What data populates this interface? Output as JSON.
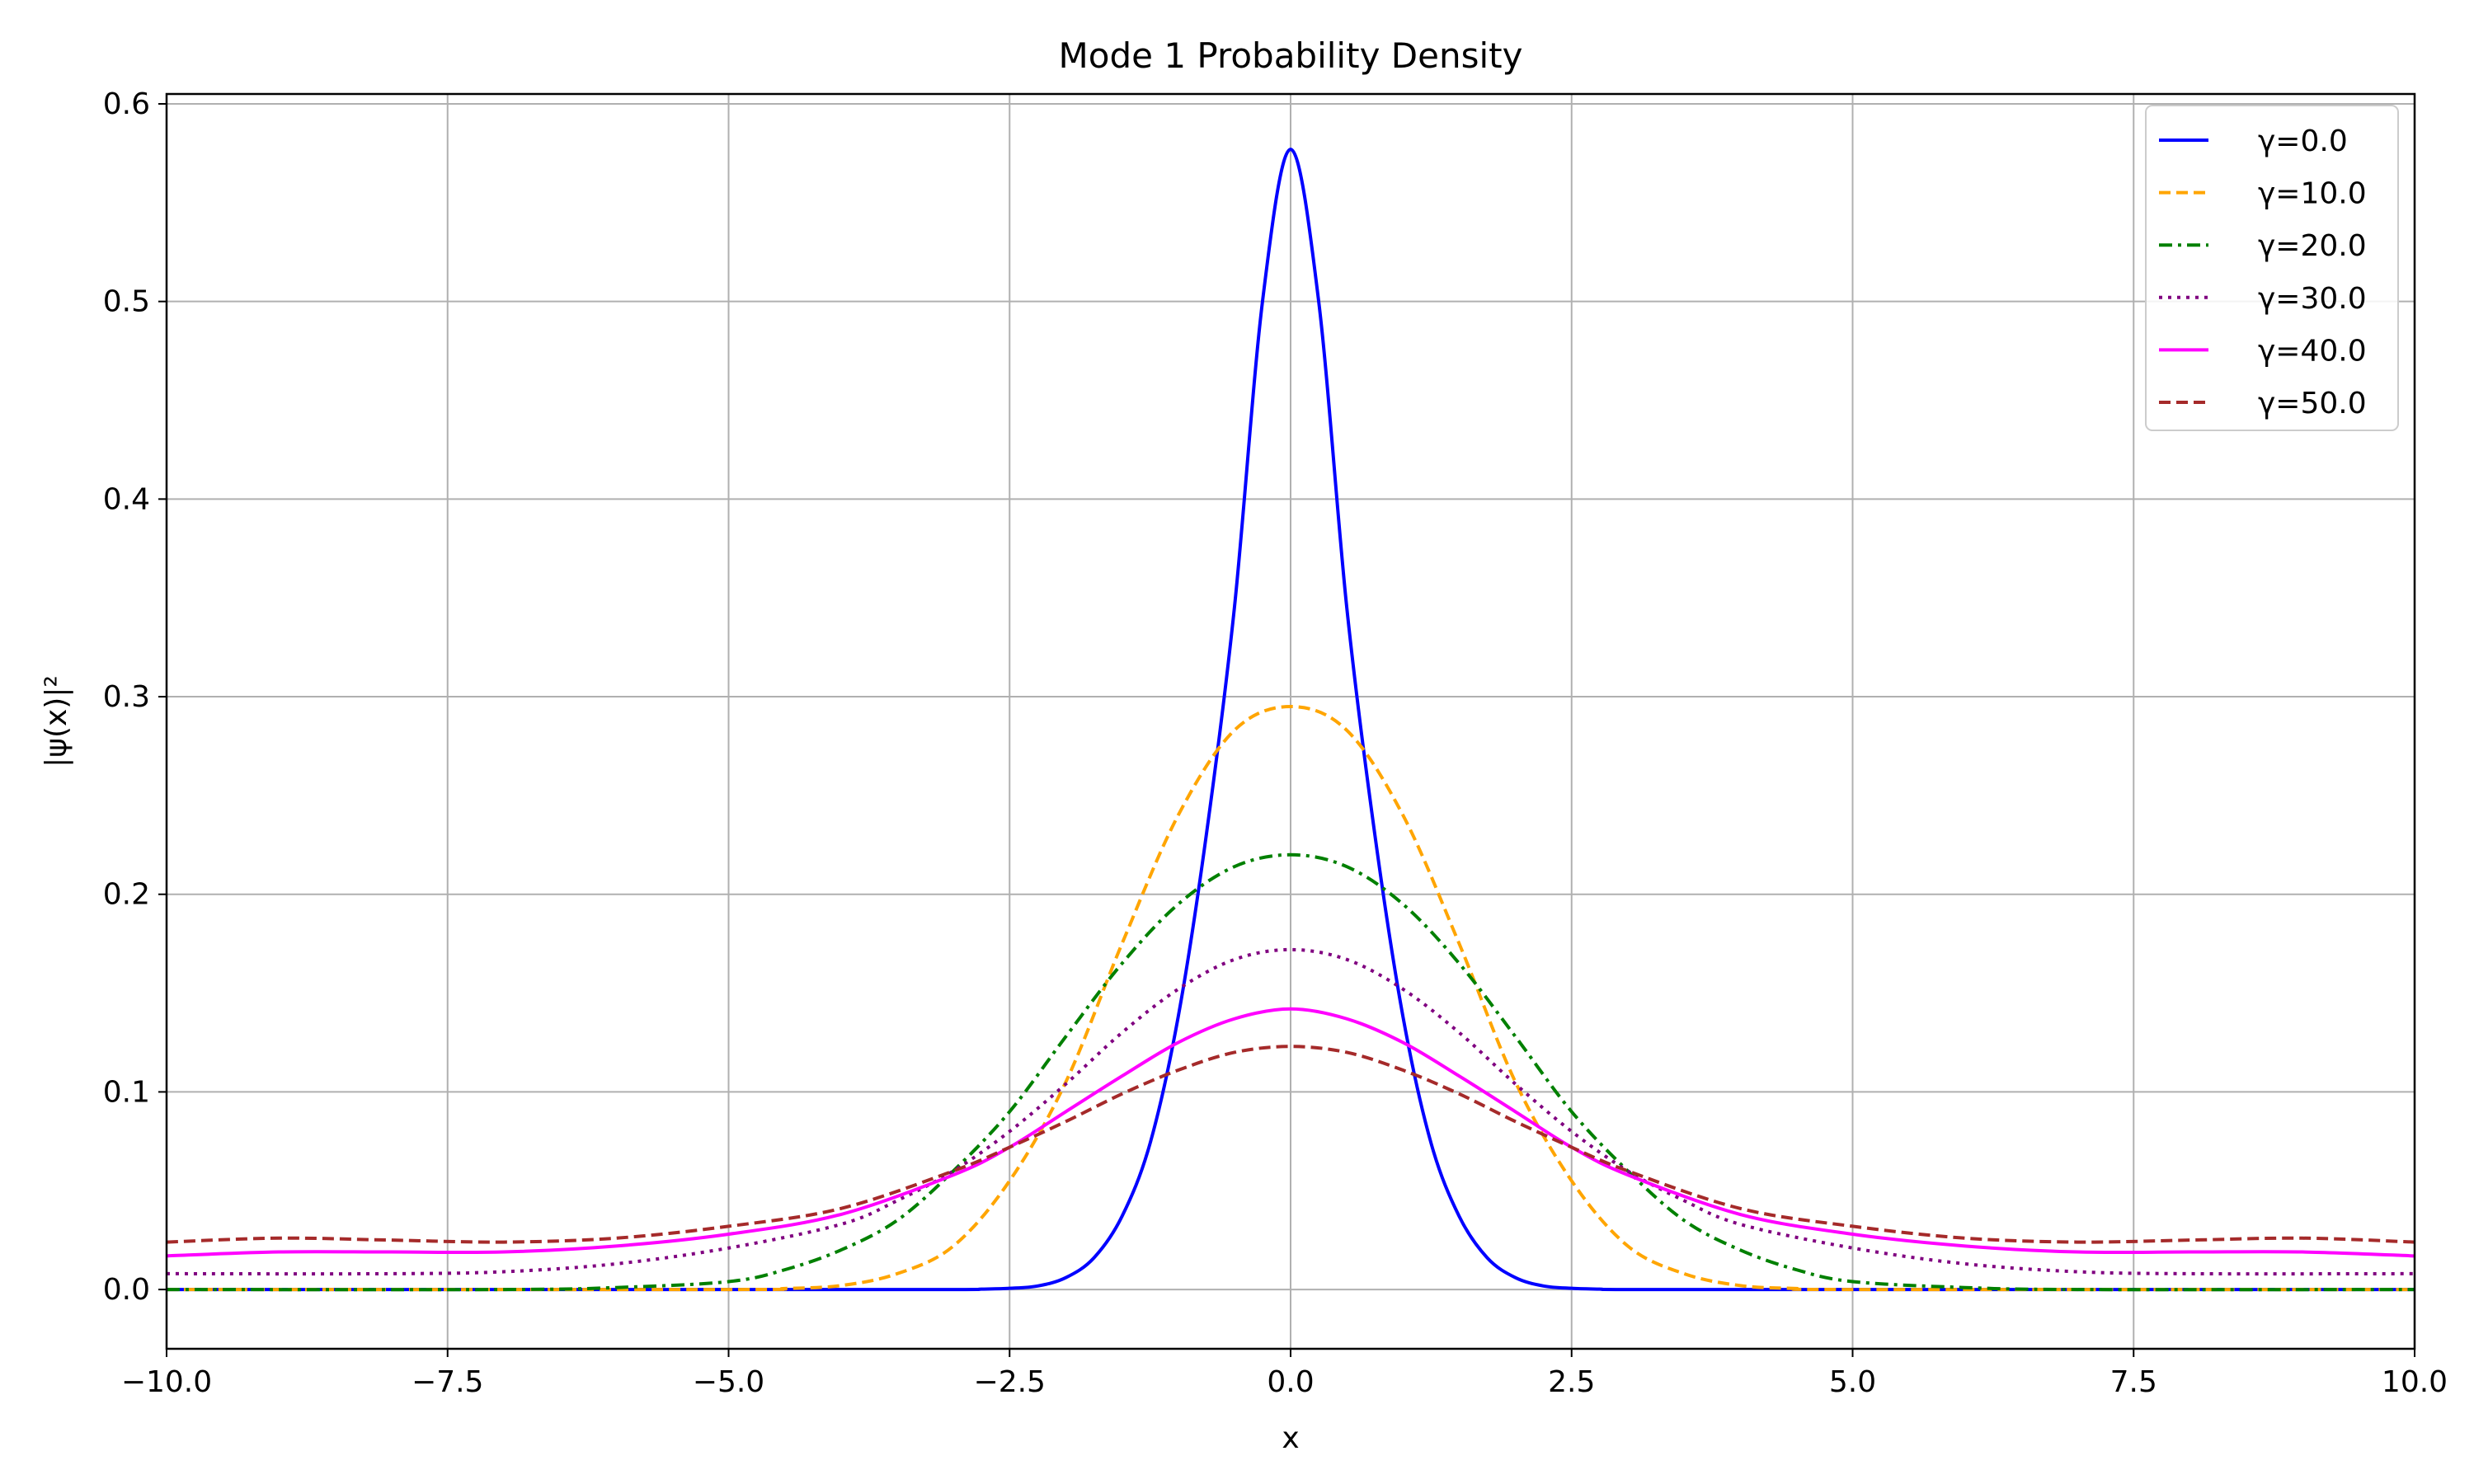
{
  "chart_data": {
    "type": "line",
    "title": "Mode 1 Probability Density",
    "xlabel": "x",
    "ylabel": "|ψ(x)|²",
    "xlim": [
      -10,
      10
    ],
    "ylim": [
      -0.03,
      0.605
    ],
    "grid": true,
    "legend_position": "top-right",
    "xticks": [
      -10,
      -7.5,
      -5,
      -2.5,
      0,
      2.5,
      5,
      7.5,
      10
    ],
    "xtick_labels": [
      "−10.0",
      "−7.5",
      "−5.0",
      "−2.5",
      "0.0",
      "2.5",
      "5.0",
      "7.5",
      "10.0"
    ],
    "yticks": [
      0,
      0.1,
      0.2,
      0.3,
      0.4,
      0.5,
      0.6
    ],
    "ytick_labels": [
      "0.0",
      "0.1",
      "0.2",
      "0.3",
      "0.4",
      "0.5",
      "0.6"
    ],
    "series": [
      {
        "name": "γ=0.0",
        "color": "#0000ff",
        "dash": "solid",
        "points": [
          [
            -10,
            0
          ],
          [
            -5,
            0
          ],
          [
            -3,
            0.0
          ],
          [
            -2.75,
            0.0002
          ],
          [
            -2.5,
            0.0006
          ],
          [
            -2.25,
            0.0018
          ],
          [
            -2,
            0.006
          ],
          [
            -1.75,
            0.016
          ],
          [
            -1.5,
            0.037
          ],
          [
            -1.25,
            0.074
          ],
          [
            -1,
            0.138
          ],
          [
            -0.75,
            0.23
          ],
          [
            -0.5,
            0.345
          ],
          [
            -0.25,
            0.5
          ],
          [
            0,
            0.577
          ],
          [
            0.25,
            0.5
          ],
          [
            0.5,
            0.345
          ],
          [
            0.75,
            0.23
          ],
          [
            1,
            0.138
          ],
          [
            1.25,
            0.074
          ],
          [
            1.5,
            0.037
          ],
          [
            1.75,
            0.016
          ],
          [
            2,
            0.006
          ],
          [
            2.25,
            0.0018
          ],
          [
            2.5,
            0.0006
          ],
          [
            2.75,
            0.0002
          ],
          [
            3,
            0.0
          ],
          [
            5,
            0
          ],
          [
            10,
            0
          ]
        ]
      },
      {
        "name": "γ=10.0",
        "color": "#ffa500",
        "dash": "dashed",
        "points": [
          [
            -10,
            0
          ],
          [
            -5,
            0.0
          ],
          [
            -4.5,
            0.0005
          ],
          [
            -4,
            0.002
          ],
          [
            -3.5,
            0.008
          ],
          [
            -3,
            0.022
          ],
          [
            -2.5,
            0.055
          ],
          [
            -2,
            0.105
          ],
          [
            -1.5,
            0.175
          ],
          [
            -1,
            0.24
          ],
          [
            -0.5,
            0.283
          ],
          [
            0,
            0.295
          ],
          [
            0.5,
            0.283
          ],
          [
            1,
            0.24
          ],
          [
            1.5,
            0.175
          ],
          [
            2,
            0.105
          ],
          [
            2.5,
            0.055
          ],
          [
            3,
            0.022
          ],
          [
            3.5,
            0.008
          ],
          [
            4,
            0.002
          ],
          [
            4.5,
            0.0005
          ],
          [
            5,
            0.0
          ],
          [
            10,
            0
          ]
        ]
      },
      {
        "name": "γ=20.0",
        "color": "#008000",
        "dash": "dashdot",
        "points": [
          [
            -10,
            0
          ],
          [
            -7,
            0.0
          ],
          [
            -6,
            0.001
          ],
          [
            -5,
            0.004
          ],
          [
            -4.5,
            0.01
          ],
          [
            -4,
            0.02
          ],
          [
            -3.5,
            0.035
          ],
          [
            -3,
            0.06
          ],
          [
            -2.5,
            0.09
          ],
          [
            -2,
            0.128
          ],
          [
            -1.5,
            0.165
          ],
          [
            -1,
            0.195
          ],
          [
            -0.5,
            0.214
          ],
          [
            0,
            0.22
          ],
          [
            0.5,
            0.214
          ],
          [
            1,
            0.195
          ],
          [
            1.5,
            0.165
          ],
          [
            2,
            0.128
          ],
          [
            2.5,
            0.09
          ],
          [
            3,
            0.06
          ],
          [
            3.5,
            0.035
          ],
          [
            4,
            0.02
          ],
          [
            4.5,
            0.01
          ],
          [
            5,
            0.004
          ],
          [
            6,
            0.001
          ],
          [
            7,
            0.0
          ],
          [
            10,
            0
          ]
        ]
      },
      {
        "name": "γ=30.0",
        "color": "#800080",
        "dash": "dotted",
        "points": [
          [
            -10,
            0.008
          ],
          [
            -8,
            0.008
          ],
          [
            -7,
            0.009
          ],
          [
            -6,
            0.013
          ],
          [
            -5,
            0.021
          ],
          [
            -4,
            0.033
          ],
          [
            -3.5,
            0.045
          ],
          [
            -3,
            0.06
          ],
          [
            -2.5,
            0.08
          ],
          [
            -2,
            0.104
          ],
          [
            -1.5,
            0.13
          ],
          [
            -1,
            0.152
          ],
          [
            -0.5,
            0.167
          ],
          [
            0,
            0.172
          ],
          [
            0.5,
            0.167
          ],
          [
            1,
            0.152
          ],
          [
            1.5,
            0.13
          ],
          [
            2,
            0.104
          ],
          [
            2.5,
            0.08
          ],
          [
            3,
            0.06
          ],
          [
            3.5,
            0.045
          ],
          [
            4,
            0.033
          ],
          [
            5,
            0.021
          ],
          [
            6,
            0.013
          ],
          [
            7,
            0.009
          ],
          [
            8,
            0.008
          ],
          [
            10,
            0.008
          ]
        ]
      },
      {
        "name": "γ=40.0",
        "color": "#ff00ff",
        "dash": "solid",
        "points": [
          [
            -10,
            0.017
          ],
          [
            -9,
            0.019
          ],
          [
            -8,
            0.019
          ],
          [
            -7,
            0.019
          ],
          [
            -6,
            0.022
          ],
          [
            -5,
            0.028
          ],
          [
            -4,
            0.038
          ],
          [
            -3,
            0.058
          ],
          [
            -2.5,
            0.072
          ],
          [
            -2,
            0.09
          ],
          [
            -1.5,
            0.108
          ],
          [
            -1,
            0.125
          ],
          [
            -0.5,
            0.137
          ],
          [
            0,
            0.142
          ],
          [
            0.5,
            0.137
          ],
          [
            1,
            0.125
          ],
          [
            1.5,
            0.108
          ],
          [
            2,
            0.09
          ],
          [
            2.5,
            0.072
          ],
          [
            3,
            0.058
          ],
          [
            4,
            0.038
          ],
          [
            5,
            0.028
          ],
          [
            6,
            0.022
          ],
          [
            7,
            0.019
          ],
          [
            8,
            0.019
          ],
          [
            9,
            0.019
          ],
          [
            10,
            0.017
          ]
        ]
      },
      {
        "name": "γ=50.0",
        "color": "#a52a2a",
        "dash": "dashed",
        "points": [
          [
            -10,
            0.024
          ],
          [
            -9,
            0.026
          ],
          [
            -8,
            0.025
          ],
          [
            -7,
            0.024
          ],
          [
            -6,
            0.026
          ],
          [
            -5,
            0.032
          ],
          [
            -4,
            0.041
          ],
          [
            -3,
            0.06
          ],
          [
            -2.5,
            0.072
          ],
          [
            -2,
            0.085
          ],
          [
            -1.5,
            0.099
          ],
          [
            -1,
            0.111
          ],
          [
            -0.5,
            0.12
          ],
          [
            0,
            0.123
          ],
          [
            0.5,
            0.12
          ],
          [
            1,
            0.111
          ],
          [
            1.5,
            0.099
          ],
          [
            2,
            0.085
          ],
          [
            2.5,
            0.072
          ],
          [
            3,
            0.06
          ],
          [
            4,
            0.041
          ],
          [
            5,
            0.032
          ],
          [
            6,
            0.026
          ],
          [
            7,
            0.024
          ],
          [
            8,
            0.025
          ],
          [
            9,
            0.026
          ],
          [
            10,
            0.024
          ]
        ]
      }
    ]
  }
}
